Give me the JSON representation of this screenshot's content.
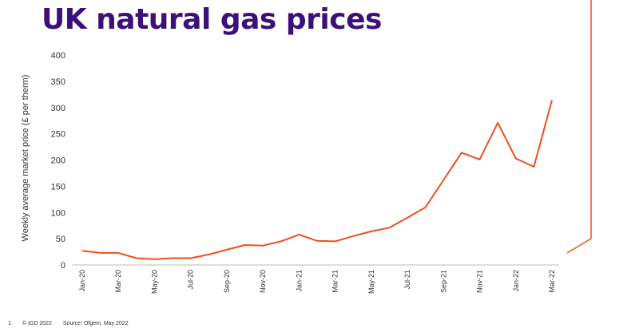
{
  "title": "UK natural gas prices",
  "footer": {
    "page": "1",
    "copyright": "© IGD 2022",
    "source": "Source: Ofgem, May 2022"
  },
  "colors": {
    "title": "#3b1078",
    "line": "#f04e1c",
    "axis": "#bbbbbb",
    "text": "#333333"
  },
  "chart_data": {
    "type": "line",
    "title": "UK natural gas prices",
    "xlabel": "",
    "ylabel": "Weekly average market price (£ per therm)",
    "ylim": [
      0,
      400
    ],
    "yticks": [
      0,
      50,
      100,
      150,
      200,
      250,
      300,
      350,
      400
    ],
    "x_tick_labels": [
      "Jan-20",
      "Mar-20",
      "May-20",
      "Jul-20",
      "Sep-20",
      "Nov-20",
      "Jan-21",
      "Mar-21",
      "May-21",
      "Jul-21",
      "Sep-21",
      "Nov-21",
      "Jan-22",
      "Mar-22"
    ],
    "grid": false,
    "legend": "none",
    "series": [
      {
        "x": [
          "Jan-20",
          "Feb-20",
          "Mar-20",
          "Apr-20",
          "May-20",
          "Jun-20",
          "Jul-20",
          "Aug-20",
          "Sep-20",
          "Oct-20",
          "Nov-20",
          "Dec-20",
          "Jan-21",
          "Feb-21",
          "Mar-21",
          "Apr-21",
          "May-21",
          "Jun-21",
          "Jul-21",
          "Aug-21",
          "Sep-21",
          "Oct-21",
          "Nov-21",
          "Dec-21",
          "Jan-22",
          "Feb-22",
          "Mar-22"
        ],
        "values": [
          27,
          23,
          23,
          13,
          11,
          13,
          13,
          20,
          29,
          38,
          37,
          45,
          58,
          46,
          45,
          55,
          64,
          71,
          90,
          110,
          162,
          214,
          201,
          271,
          203,
          187,
          314
        ]
      }
    ]
  }
}
